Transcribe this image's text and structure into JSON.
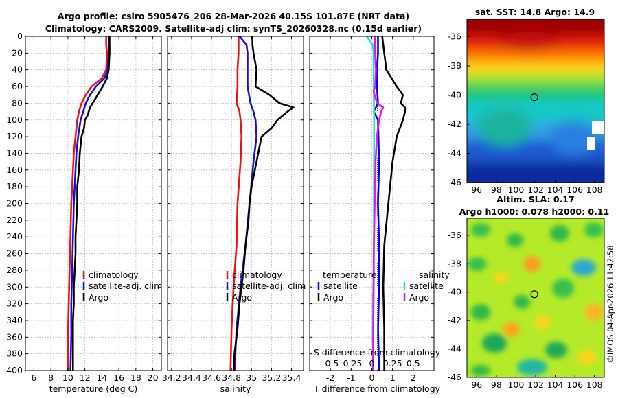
{
  "figure": {
    "title_line1": "Argo profile: csiro 5905476_206 28-Mar-2026 40.15S 101.87E (NRT data)",
    "title_line2": "Climatology: CARS2009. Satellite-adj clim: synTS_20260328.nc (0.15d earlier)",
    "copyright": "©IMOS 04-Apr-2026 11:42:58"
  },
  "colors": {
    "climatology": "#ee1111",
    "satellite_adj": "#1111dd",
    "argo": "#000000",
    "sat_temp": "#0000ee",
    "sat_sal": "#22dddd",
    "argo_sal": "#ee11ee"
  },
  "chart_data": [
    {
      "type": "line",
      "id": "temperature",
      "xlabel": "temperature (deg C)",
      "ylabel": "",
      "xlim": [
        5,
        21
      ],
      "ylim": [
        400,
        0
      ],
      "xticks": [
        6,
        8,
        10,
        12,
        14,
        16,
        18,
        20
      ],
      "yticks": [
        0,
        20,
        40,
        60,
        80,
        100,
        120,
        140,
        160,
        180,
        200,
        220,
        240,
        260,
        280,
        300,
        320,
        340,
        360,
        380,
        400
      ],
      "legend": [
        "climatology",
        "satellite-adj. clim",
        "Argo"
      ],
      "series": [
        {
          "name": "climatology",
          "depth": [
            0,
            10,
            20,
            40,
            50,
            60,
            70,
            80,
            90,
            100,
            120,
            140,
            160,
            180,
            200,
            240,
            280,
            320,
            360,
            400
          ],
          "values": [
            14.5,
            14.5,
            14.6,
            14.5,
            14.0,
            12.8,
            12.1,
            11.6,
            11.3,
            11.1,
            10.9,
            10.7,
            10.6,
            10.5,
            10.4,
            10.3,
            10.2,
            10.1,
            10.0,
            10.0
          ]
        },
        {
          "name": "satellite-adj. clim",
          "depth": [
            0,
            10,
            20,
            40,
            50,
            60,
            70,
            80,
            90,
            100,
            120,
            140,
            160,
            180,
            200,
            240,
            280,
            320,
            360,
            400
          ],
          "values": [
            14.8,
            14.8,
            14.8,
            14.7,
            14.3,
            13.3,
            12.6,
            12.1,
            11.8,
            11.5,
            11.2,
            11.0,
            10.9,
            10.8,
            10.7,
            10.6,
            10.5,
            10.4,
            10.4,
            10.3
          ]
        },
        {
          "name": "Argo",
          "depth": [
            0,
            10,
            20,
            40,
            50,
            60,
            70,
            80,
            85,
            95,
            100,
            110,
            120,
            140,
            160,
            180,
            200,
            220,
            240,
            260,
            280,
            300,
            320,
            340,
            360,
            380,
            400
          ],
          "values": [
            14.9,
            14.9,
            14.9,
            14.8,
            14.6,
            14.1,
            13.5,
            12.9,
            12.6,
            12.3,
            12.0,
            11.9,
            11.6,
            11.4,
            11.3,
            11.1,
            11.1,
            11.0,
            10.9,
            10.9,
            10.8,
            10.7,
            10.7,
            10.6,
            10.6,
            10.6,
            10.6
          ]
        }
      ]
    },
    {
      "type": "line",
      "id": "salinity",
      "xlabel": "salinity",
      "ylabel": "",
      "xlim": [
        34.16,
        35.52
      ],
      "ylim": [
        400,
        0
      ],
      "xticks": [
        34.2,
        34.4,
        34.6,
        34.8,
        35,
        35.2,
        35.4
      ],
      "xticklabels": [
        "34.2",
        "34.4",
        "34.6",
        "34.8",
        "35",
        "35.2",
        "35.4"
      ],
      "legend": [
        "climatology",
        "satellite-adj. clim",
        "Argo"
      ],
      "series": [
        {
          "name": "climatology",
          "depth": [
            0,
            20,
            40,
            60,
            80,
            90,
            100,
            120,
            150,
            200,
            250,
            300,
            350,
            400
          ],
          "values": [
            34.87,
            34.87,
            34.86,
            34.86,
            34.85,
            34.88,
            34.89,
            34.9,
            34.89,
            34.86,
            34.85,
            34.82,
            34.8,
            34.79
          ]
        },
        {
          "name": "satellite-adj. clim",
          "depth": [
            0,
            10,
            20,
            40,
            60,
            80,
            90,
            100,
            120,
            150,
            200,
            250,
            300,
            350,
            400
          ],
          "values": [
            34.88,
            34.95,
            34.96,
            34.96,
            34.96,
            34.99,
            35.02,
            35.04,
            35.05,
            35.02,
            34.98,
            34.94,
            34.89,
            34.85,
            34.83
          ]
        },
        {
          "name": "Argo",
          "depth": [
            0,
            10,
            20,
            40,
            60,
            70,
            80,
            85,
            90,
            100,
            110,
            120,
            150,
            180,
            200,
            220,
            250,
            280,
            300,
            320,
            350,
            380,
            400
          ],
          "values": [
            35.01,
            35.01,
            35.02,
            35.05,
            35.04,
            35.18,
            35.28,
            35.42,
            35.36,
            35.26,
            35.2,
            35.1,
            35.05,
            35.0,
            34.98,
            34.97,
            34.94,
            34.92,
            34.9,
            34.88,
            34.86,
            34.83,
            34.82
          ]
        }
      ]
    },
    {
      "type": "line",
      "id": "difference",
      "xlabel": "T difference from climatology",
      "x2label": "S difference from climatology",
      "xlim": [
        -3,
        3
      ],
      "ylim": [
        400,
        0
      ],
      "xticks": [
        -2,
        -1,
        0,
        1,
        2
      ],
      "s_ticks": [
        -0.5,
        -0.25,
        0,
        0.25,
        0.5
      ],
      "s_ticklabels": [
        "-0.5",
        "-0.25",
        "0",
        "0.25",
        "0.5"
      ],
      "legend_temperature_title": "temperature",
      "legend_salinity_title": "salinity",
      "legend_temperature": [
        "satellite",
        "Argo"
      ],
      "legend_salinity": [
        "satellite",
        "Argo"
      ],
      "series": [
        {
          "name": "temperature satellite",
          "depth": [
            0,
            20,
            40,
            60,
            80,
            90,
            100,
            150,
            200,
            250,
            300,
            350,
            400
          ],
          "values": [
            0.3,
            0.3,
            0.25,
            0.25,
            0.3,
            0.1,
            0.3,
            0.35,
            0.3,
            0.35,
            0.35,
            0.3,
            0.35
          ]
        },
        {
          "name": "temperature Argo",
          "depth": [
            0,
            20,
            40,
            60,
            70,
            80,
            85,
            90,
            100,
            120,
            150,
            200,
            250,
            300,
            350,
            400
          ],
          "values": [
            0.5,
            0.6,
            0.7,
            1.2,
            1.5,
            1.4,
            1.6,
            1.6,
            1.5,
            1.2,
            1.0,
            0.8,
            0.6,
            0.55,
            0.6,
            0.6
          ]
        },
        {
          "name": "salinity satellite",
          "depth": [
            0,
            10,
            20,
            40,
            60,
            80,
            100,
            150,
            200,
            250,
            300,
            350,
            400
          ],
          "values": [
            -0.25,
            0.05,
            0.08,
            0.09,
            0.09,
            0.1,
            0.11,
            0.11,
            0.1,
            0.1,
            0.07,
            0.05,
            0.05
          ]
        },
        {
          "name": "salinity Argo",
          "depth": [
            0,
            20,
            40,
            60,
            65,
            70,
            80,
            85,
            90,
            100,
            120,
            150,
            200,
            250,
            300,
            350,
            400
          ],
          "values": [
            0.14,
            0.16,
            0.2,
            0.17,
            0.08,
            0.13,
            0.26,
            0.55,
            0.45,
            0.35,
            0.25,
            0.18,
            0.14,
            0.1,
            0.09,
            0.07,
            0.06
          ]
        }
      ]
    },
    {
      "type": "heatmap",
      "id": "sst_map",
      "title": "sat. SST: 14.8 Argo: 14.9",
      "xlim": [
        95,
        109
      ],
      "ylim": [
        -46,
        -34.8
      ],
      "xticks": [
        96,
        98,
        100,
        102,
        104,
        106,
        108
      ],
      "yticks": [
        -36,
        -38,
        -40,
        -42,
        -44,
        -46
      ],
      "marker": {
        "lon": 101.87,
        "lat": -40.15
      }
    },
    {
      "type": "heatmap",
      "id": "sla_map",
      "title_line1": "Altim. SLA: 0.17",
      "title_line2": "Argo h1000: 0.078 h2000: 0.11",
      "xlim": [
        95,
        109
      ],
      "ylim": [
        -46,
        -34.8
      ],
      "xticks": [
        96,
        98,
        100,
        102,
        104,
        106,
        108
      ],
      "yticks": [
        -36,
        -38,
        -40,
        -42,
        -44,
        -46
      ],
      "marker": {
        "lon": 101.87,
        "lat": -40.15
      }
    }
  ]
}
